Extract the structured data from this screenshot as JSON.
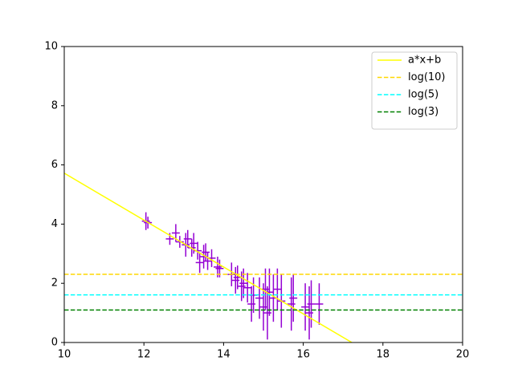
{
  "chart_data": {
    "type": "line",
    "xlim": [
      10,
      20
    ],
    "xticks": [
      10,
      12,
      14,
      16,
      18,
      20
    ],
    "ylim": [
      0,
      10
    ],
    "yticks": [
      0,
      2,
      4,
      6,
      8,
      10
    ],
    "grid": false,
    "legend": "upper right",
    "series": [
      {
        "name": "a*x+b",
        "color": "#ffff00",
        "dash": "solid",
        "x": [
          10,
          17.22
        ],
        "values": [
          5.72,
          0
        ]
      },
      {
        "name": "log(10)",
        "color": "#ffd700",
        "dash": "dashed",
        "x": [
          10,
          20
        ],
        "values": [
          2.303,
          2.303
        ]
      },
      {
        "name": "log(5)",
        "color": "#00ffff",
        "dash": "dashed",
        "x": [
          10,
          20
        ],
        "values": [
          1.609,
          1.609
        ]
      },
      {
        "name": "log(3)",
        "color": "#008000",
        "dash": "dashed",
        "x": [
          10,
          20
        ],
        "values": [
          1.099,
          1.099
        ]
      }
    ],
    "errorbar": {
      "color": "#9400d3",
      "x": [
        12.05,
        12.1,
        12.65,
        12.8,
        12.9,
        13.05,
        13.1,
        13.2,
        13.25,
        13.35,
        13.4,
        13.5,
        13.55,
        13.6,
        13.7,
        13.85,
        13.9,
        14.2,
        14.3,
        14.35,
        14.45,
        14.5,
        14.6,
        14.7,
        14.75,
        14.9,
        15.0,
        15.05,
        15.1,
        15.15,
        15.25,
        15.35,
        15.45,
        15.7,
        15.75,
        16.05,
        16.15,
        16.2,
        16.4
      ],
      "values": [
        4.1,
        4.05,
        3.5,
        3.7,
        3.4,
        3.3,
        3.5,
        3.2,
        3.35,
        3.1,
        2.7,
        2.9,
        3.05,
        2.75,
        2.85,
        2.55,
        2.5,
        2.3,
        2.1,
        2.2,
        1.9,
        2.0,
        1.85,
        1.3,
        1.6,
        1.5,
        1.2,
        1.8,
        1.0,
        1.7,
        1.5,
        1.8,
        1.4,
        1.3,
        1.5,
        1.2,
        1.0,
        1.3,
        1.3
      ],
      "xerr": [
        0.1,
        0.1,
        0.1,
        0.1,
        0.1,
        0.1,
        0.1,
        0.1,
        0.1,
        0.1,
        0.1,
        0.1,
        0.1,
        0.1,
        0.1,
        0.1,
        0.1,
        0.1,
        0.1,
        0.1,
        0.1,
        0.1,
        0.1,
        0.1,
        0.1,
        0.1,
        0.1,
        0.1,
        0.1,
        0.1,
        0.1,
        0.1,
        0.1,
        0.1,
        0.1,
        0.1,
        0.1,
        0.1,
        0.1
      ],
      "yerr": [
        0.3,
        0.2,
        0.2,
        0.3,
        0.2,
        0.4,
        0.3,
        0.3,
        0.35,
        0.3,
        0.35,
        0.4,
        0.3,
        0.3,
        0.3,
        0.35,
        0.3,
        0.4,
        0.45,
        0.4,
        0.5,
        0.5,
        0.5,
        0.6,
        0.6,
        0.7,
        0.8,
        0.7,
        0.9,
        0.8,
        0.8,
        0.7,
        0.9,
        0.9,
        0.8,
        0.8,
        0.9,
        0.8,
        0.7
      ]
    }
  }
}
